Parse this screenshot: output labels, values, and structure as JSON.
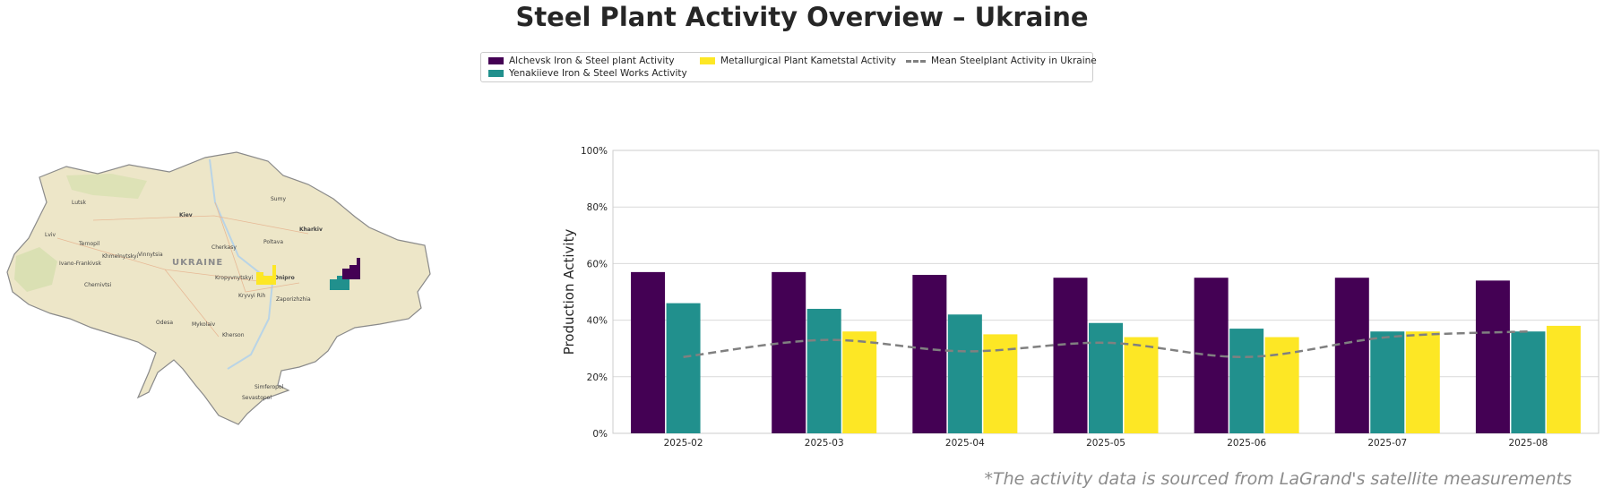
{
  "title": "Steel Plant Activity Overview – Ukraine",
  "legend": {
    "items": [
      {
        "label": "Alchevsk Iron & Steel plant Activity",
        "color": "#440154",
        "kind": "bar"
      },
      {
        "label": "Yenakiieve Iron & Steel Works Activity",
        "color": "#21908d",
        "kind": "bar"
      },
      {
        "label": "Metallurgical Plant Kametstal Activity",
        "color": "#fde725",
        "kind": "bar"
      },
      {
        "label": "Mean Steelplant Activity in Ukraine",
        "color": "#808080",
        "kind": "dashed-line"
      }
    ]
  },
  "map": {
    "country_label": "UKRAINE",
    "cities": [
      "Lutsk",
      "Kiev",
      "Sumy",
      "Kharkiv",
      "Lviv",
      "Ternopil",
      "Poltava",
      "Cherkasy",
      "Ivano-Frankivsk",
      "Khmelnytskyi",
      "Vinnytsia",
      "Kropyvnytskyi",
      "Dnipro",
      "Chernivtsi",
      "Kryvyi Rih",
      "Zaporizhzhia",
      "Mykolaiv",
      "Kherson",
      "Odesa",
      "Simferopol",
      "Sevastopol"
    ],
    "icons": [
      "factory-icon-kametstal",
      "factory-icon-yenakiieve",
      "factory-icon-alchevsk"
    ]
  },
  "chart_data": {
    "type": "bar",
    "categories": [
      "2025-02",
      "2025-03",
      "2025-04",
      "2025-05",
      "2025-06",
      "2025-07",
      "2025-08"
    ],
    "series": [
      {
        "name": "Alchevsk Iron & Steel plant Activity",
        "color": "#440154",
        "values": [
          57,
          57,
          56,
          55,
          55,
          55,
          54
        ]
      },
      {
        "name": "Yenakiieve Iron & Steel Works Activity",
        "color": "#21908d",
        "values": [
          46,
          44,
          42,
          39,
          37,
          36,
          36
        ]
      },
      {
        "name": "Metallurgical Plant Kametstal Activity",
        "color": "#fde725",
        "values": [
          null,
          36,
          35,
          34,
          34,
          36,
          38
        ]
      }
    ],
    "line": {
      "name": "Mean Steelplant Activity in Ukraine",
      "color": "#808080",
      "style": "dashed",
      "values": [
        27,
        33,
        29,
        32,
        27,
        34,
        36
      ]
    },
    "ylabel": "Production Activity",
    "yticks": [
      "0%",
      "20%",
      "40%",
      "60%",
      "80%",
      "100%"
    ],
    "ylim": [
      0,
      100
    ],
    "grid": "horizontal"
  },
  "footnote": "*The activity data is sourced from LaGrand's satellite measurements"
}
